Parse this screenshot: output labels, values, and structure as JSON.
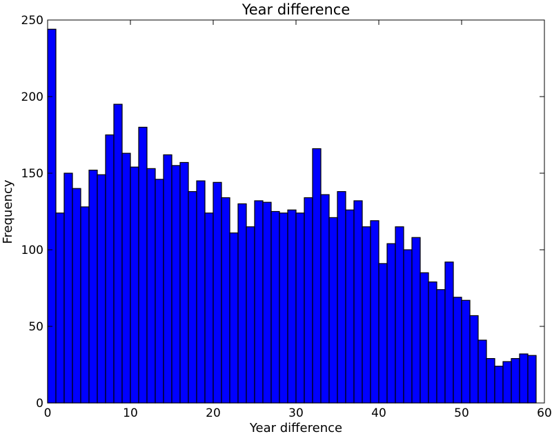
{
  "chart_data": {
    "type": "bar",
    "title": "Year difference",
    "xlabel": "Year difference",
    "ylabel": "Frequency",
    "xlim": [
      0,
      60
    ],
    "ylim": [
      0,
      250
    ],
    "xticks": [
      0,
      10,
      20,
      30,
      40,
      50,
      60
    ],
    "yticks": [
      0,
      50,
      100,
      150,
      200,
      250
    ],
    "grid": false,
    "bar_color": "#0000ff",
    "edge_color": "#000000",
    "bin_edges_start": 0,
    "bin_width": 1,
    "values": [
      244,
      124,
      150,
      140,
      128,
      152,
      149,
      175,
      195,
      163,
      154,
      180,
      153,
      146,
      162,
      155,
      157,
      138,
      145,
      124,
      144,
      134,
      111,
      130,
      115,
      132,
      131,
      125,
      124,
      126,
      124,
      134,
      166,
      136,
      121,
      138,
      126,
      132,
      115,
      119,
      91,
      104,
      115,
      100,
      108,
      85,
      79,
      74,
      92,
      69,
      67,
      57,
      41,
      29,
      24,
      27,
      29,
      32,
      31
    ]
  }
}
